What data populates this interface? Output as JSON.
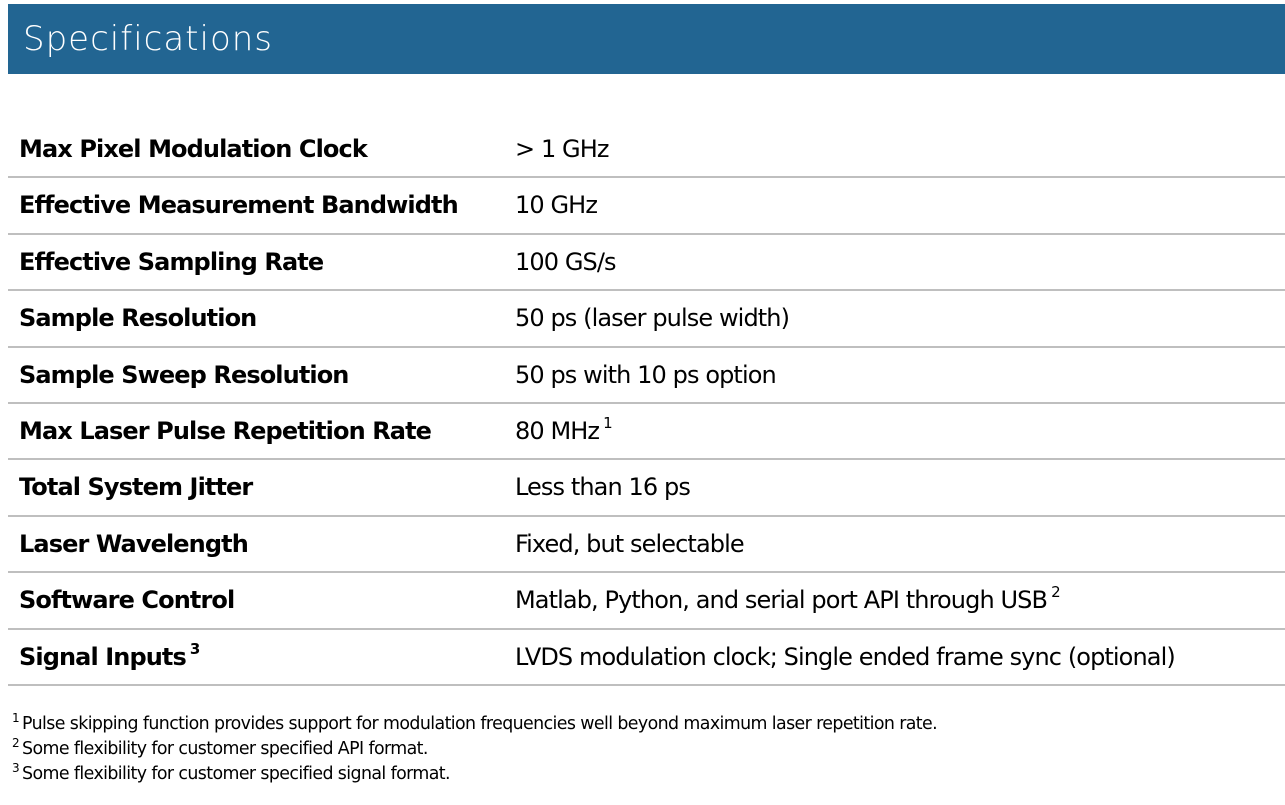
{
  "header": {
    "title": "Specifications",
    "background_color": "#226592"
  },
  "specs": [
    {
      "label": "Max Pixel Modulation Clock",
      "value": "> 1 GHz"
    },
    {
      "label": "Effective Measurement Bandwidth",
      "value": "10 GHz"
    },
    {
      "label": "Effective Sampling Rate",
      "value": "100 GS/s"
    },
    {
      "label": "Sample Resolution",
      "value": "50 ps (laser pulse width)"
    },
    {
      "label": "Sample Sweep Resolution",
      "value": "50 ps with 10 ps option"
    },
    {
      "label": "Max Laser Pulse Repetition Rate",
      "value": "80 MHz",
      "value_footnote": "1"
    },
    {
      "label": "Total System Jitter",
      "value": "Less than 16 ps"
    },
    {
      "label": "Laser Wavelength",
      "value": "Fixed, but selectable"
    },
    {
      "label": "Software Control",
      "value": "Matlab, Python, and serial port API through USB",
      "value_footnote": "2"
    },
    {
      "label": "Signal Inputs",
      "label_footnote": "3",
      "value": "LVDS modulation clock; Single ended frame sync (optional)"
    }
  ],
  "footnotes": [
    {
      "marker": "1",
      "text": "Pulse skipping function provides support for modulation frequencies well beyond maximum laser repetition rate."
    },
    {
      "marker": "2",
      "text": "Some flexibility for customer specified API format."
    },
    {
      "marker": "3",
      "text": "Some flexibility for customer specified signal format."
    }
  ]
}
